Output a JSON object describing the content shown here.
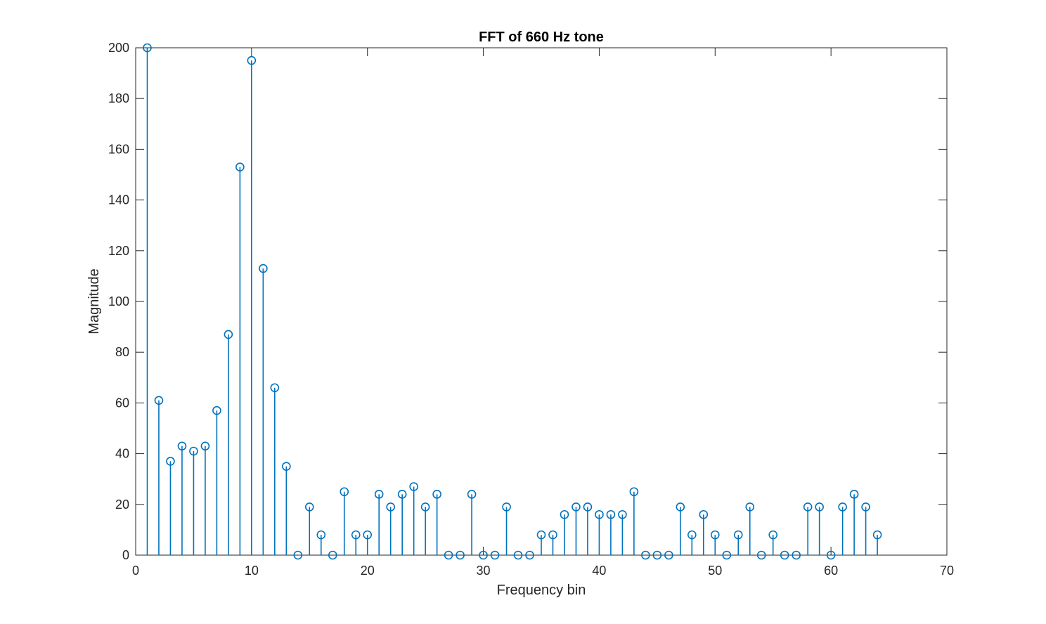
{
  "chart_data": {
    "type": "stem",
    "title": "FFT of 660 Hz tone",
    "xlabel": "Frequency bin",
    "ylabel": "Magnitude",
    "xlim": [
      0,
      70
    ],
    "ylim": [
      0,
      200
    ],
    "xticks": [
      0,
      10,
      20,
      30,
      40,
      50,
      60,
      70
    ],
    "yticks": [
      0,
      20,
      40,
      60,
      80,
      100,
      120,
      140,
      160,
      180,
      200
    ],
    "grid": false,
    "legend": "none",
    "marker": "open-circle",
    "series_color": "#0072BD",
    "axis_color": "#262626",
    "x": [
      1,
      2,
      3,
      4,
      5,
      6,
      7,
      8,
      9,
      10,
      11,
      12,
      13,
      14,
      15,
      16,
      17,
      18,
      19,
      20,
      21,
      22,
      23,
      24,
      25,
      26,
      27,
      28,
      29,
      30,
      31,
      32,
      33,
      34,
      35,
      36,
      37,
      38,
      39,
      40,
      41,
      42,
      43,
      44,
      45,
      46,
      47,
      48,
      49,
      50,
      51,
      52,
      53,
      54,
      55,
      56,
      57,
      58,
      59,
      60,
      61,
      62,
      63,
      64
    ],
    "values": [
      200,
      61,
      37,
      43,
      41,
      43,
      57,
      87,
      153,
      195,
      113,
      66,
      35,
      0,
      19,
      8,
      0,
      25,
      8,
      8,
      24,
      19,
      24,
      27,
      19,
      24,
      0,
      0,
      24,
      0,
      0,
      19,
      0,
      0,
      8,
      8,
      16,
      19,
      19,
      16,
      16,
      16,
      25,
      0,
      0,
      0,
      19,
      8,
      16,
      8,
      0,
      8,
      19,
      0,
      8,
      0,
      0,
      19,
      19,
      0,
      19,
      24,
      19,
      8
    ]
  }
}
